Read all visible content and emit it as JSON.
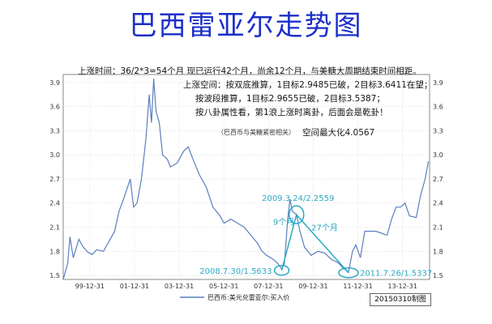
{
  "title": "巴西雷亚尔走势图",
  "notes": [
    "上涨时间：36/2*3=54个月     现已运行42个月，尚余12个月，与美糖大周期结束时间相距。",
    "上涨空间：按双底推算，1目标2.9485已破，2目标3.6411在望；",
    "按波段推算，1目标2.9655已破，2目标3.5387；",
    "按八卦属性看，第1浪上涨时离卦，后面会是乾卦！",
    "空间最大化4.0567"
  ],
  "small_note": "（巴西币与美糖紧密相关）",
  "date_box": "20150310制图",
  "chart_data": {
    "type": "line",
    "title": "巴西雷亚尔走势图",
    "ylim": [
      1.45,
      4.0
    ],
    "yticks": [
      "1.5",
      "1.8",
      "2.1",
      "2.4",
      "2.7",
      "3.0",
      "3.3",
      "3.6",
      "3.9"
    ],
    "xticks": [
      "99-12-31",
      "01-12-31",
      "03-12-31",
      "05-12-31",
      "07-12-31",
      "09-12-31",
      "11-12-31",
      "13-12-31"
    ],
    "xlim": [
      1998.8,
      2015.2
    ],
    "grid": true,
    "series": [
      {
        "name": "巴西币:美元兑雷亚尔:买入价",
        "color": "#5b7fbf",
        "x": [
          1998.8,
          1999.0,
          1999.1,
          1999.25,
          1999.5,
          1999.7,
          1999.9,
          2000.1,
          2000.3,
          2000.6,
          2000.9,
          2001.1,
          2001.3,
          2001.5,
          2001.8,
          2001.95,
          2002.1,
          2002.3,
          2002.5,
          2002.65,
          2002.75,
          2002.85,
          2002.95,
          2003.1,
          2003.25,
          2003.45,
          2003.6,
          2003.9,
          2004.2,
          2004.4,
          2004.6,
          2004.9,
          2005.2,
          2005.5,
          2005.8,
          2006.0,
          2006.3,
          2006.6,
          2006.9,
          2007.2,
          2007.5,
          2007.7,
          2007.9,
          2008.2,
          2008.4,
          2008.58,
          2008.7,
          2008.85,
          2008.95,
          2009.05,
          2009.24,
          2009.4,
          2009.6,
          2009.9,
          2010.2,
          2010.5,
          2010.8,
          2011.1,
          2011.3,
          2011.57,
          2011.75,
          2011.9,
          2012.1,
          2012.3,
          2012.5,
          2012.8,
          2013.0,
          2013.3,
          2013.5,
          2013.7,
          2013.9,
          2014.1,
          2014.3,
          2014.6,
          2014.8,
          2015.0,
          2015.15
        ],
        "values": [
          1.21,
          1.65,
          1.98,
          1.72,
          1.95,
          1.85,
          1.79,
          1.76,
          1.82,
          1.8,
          1.95,
          2.05,
          2.3,
          2.45,
          2.7,
          2.35,
          2.4,
          2.7,
          3.2,
          3.75,
          3.4,
          3.95,
          3.55,
          3.4,
          3.0,
          2.95,
          2.85,
          2.9,
          3.05,
          3.1,
          2.95,
          2.75,
          2.6,
          2.35,
          2.25,
          2.15,
          2.2,
          2.15,
          2.1,
          2.0,
          1.9,
          1.8,
          1.75,
          1.7,
          1.65,
          1.58,
          1.65,
          2.2,
          2.45,
          2.3,
          2.26,
          2.05,
          1.85,
          1.75,
          1.8,
          1.78,
          1.7,
          1.66,
          1.6,
          1.54,
          1.8,
          1.88,
          1.72,
          2.05,
          2.05,
          2.05,
          2.03,
          2.0,
          2.2,
          2.35,
          2.35,
          2.4,
          2.24,
          2.22,
          2.5,
          2.7,
          2.92
        ]
      }
    ],
    "annotations": [
      {
        "text": "2009.3.24/2.2559",
        "x": 2009.24,
        "y": 2.2559
      },
      {
        "text": "9个月",
        "x": 2008.6,
        "y": 2.1
      },
      {
        "text": "27个月",
        "x": 2010.5,
        "y": 2.03
      },
      {
        "text": "2008.7.30/1.5633",
        "x": 2008.58,
        "y": 1.5633
      },
      {
        "text": "2011.7.26/1.5337",
        "x": 2011.57,
        "y": 1.5337
      }
    ]
  }
}
